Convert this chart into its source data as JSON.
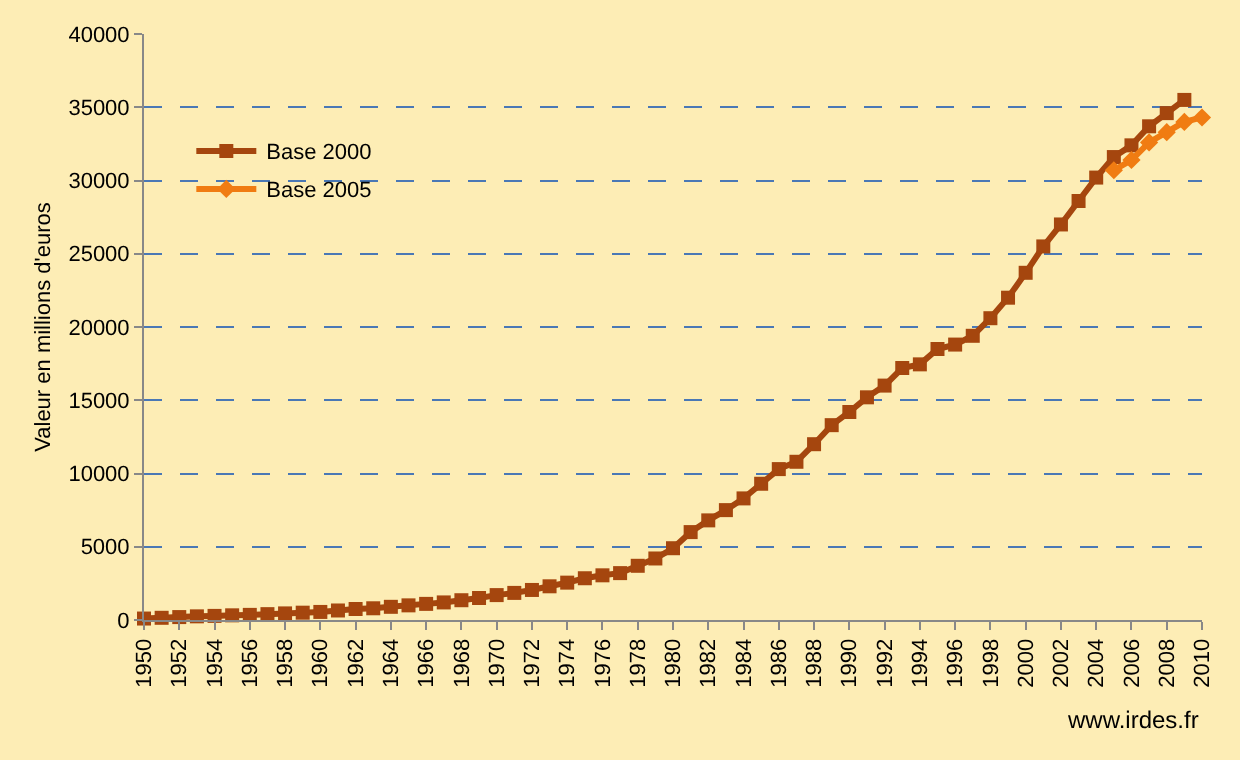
{
  "chart_data": {
    "type": "line",
    "ylabel": "Valeur en millions d'euros",
    "x": [
      1950,
      1951,
      1952,
      1953,
      1954,
      1955,
      1956,
      1957,
      1958,
      1959,
      1960,
      1961,
      1962,
      1963,
      1964,
      1965,
      1966,
      1967,
      1968,
      1969,
      1970,
      1971,
      1972,
      1973,
      1974,
      1975,
      1976,
      1977,
      1978,
      1979,
      1980,
      1981,
      1982,
      1983,
      1984,
      1985,
      1986,
      1987,
      1988,
      1989,
      1990,
      1991,
      1992,
      1993,
      1994,
      1995,
      1996,
      1997,
      1998,
      1999,
      2000,
      2001,
      2002,
      2003,
      2004,
      2005,
      2006,
      2007,
      2008,
      2009
    ],
    "series": [
      {
        "name": "Base 2000",
        "color": "#a5460e",
        "marker": "square",
        "values": [
          100,
          150,
          200,
          250,
          280,
          320,
          350,
          400,
          450,
          500,
          550,
          650,
          750,
          800,
          900,
          1000,
          1100,
          1200,
          1350,
          1500,
          1700,
          1850,
          2050,
          2300,
          2550,
          2850,
          3050,
          3200,
          3700,
          4200,
          4900,
          6000,
          6800,
          7500,
          8300,
          9300,
          10300,
          10800,
          12000,
          13300,
          14200,
          15200,
          16000,
          17200,
          17450,
          18500,
          18800,
          19400,
          20600,
          22000,
          23700,
          25500,
          27000,
          28600,
          30200,
          31600,
          32400,
          33700,
          34600,
          35500
        ]
      },
      {
        "name": "Base 2005",
        "color": "#f07c12",
        "marker": "diamond",
        "x": [
          2005,
          2006,
          2007,
          2008,
          2009,
          2010
        ],
        "values": [
          30700,
          31400,
          32600,
          33300,
          34000,
          34300
        ]
      }
    ],
    "xlim": [
      1950,
      2010
    ],
    "xticks": [
      1950,
      1952,
      1954,
      1956,
      1958,
      1960,
      1962,
      1964,
      1966,
      1968,
      1970,
      1972,
      1974,
      1976,
      1978,
      1980,
      1982,
      1984,
      1986,
      1988,
      1990,
      1992,
      1994,
      1996,
      1998,
      2000,
      2002,
      2004,
      2006,
      2008,
      2010
    ],
    "ylim": [
      0,
      40000
    ],
    "yticks": [
      0,
      5000,
      10000,
      15000,
      20000,
      25000,
      30000,
      35000,
      40000
    ],
    "grid": "y",
    "legend": "top left",
    "line_style": "solid",
    "annotations": [
      "www.irdes.fr"
    ]
  }
}
